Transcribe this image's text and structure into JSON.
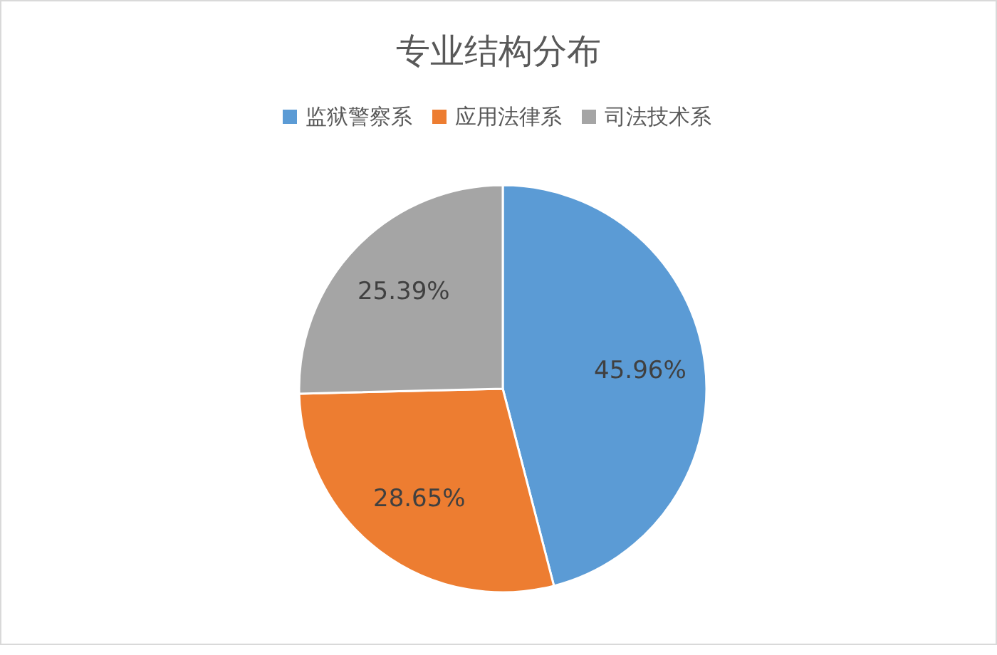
{
  "chart_data": {
    "type": "pie",
    "title": "专业结构分布",
    "categories": [
      "监狱警察系",
      "应用法律系",
      "司法技术系"
    ],
    "values": [
      45.96,
      28.65,
      25.39
    ],
    "colors": [
      "#5b9bd5",
      "#ed7d31",
      "#a5a5a5"
    ],
    "value_labels": [
      "45.96%",
      "28.65%",
      "25.39%"
    ],
    "legend": "top"
  }
}
